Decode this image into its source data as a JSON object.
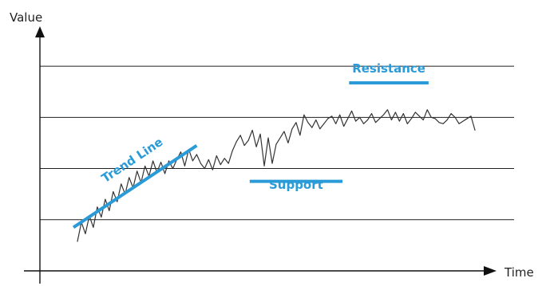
{
  "chart_data": {
    "type": "line",
    "ylabel": "Value",
    "xlabel": "Time",
    "grid": true,
    "series": [
      {
        "color": "#333333",
        "x": [
          0,
          3,
          6,
          9,
          12,
          15,
          18,
          21,
          24,
          27,
          30,
          33,
          36,
          39,
          42,
          45,
          48,
          51,
          54,
          57,
          60,
          63,
          66,
          69,
          72,
          75,
          78,
          81,
          84,
          87,
          90,
          93,
          96,
          99,
          102,
          105,
          108,
          111,
          114,
          117,
          120,
          123,
          126,
          129,
          132,
          135,
          138,
          141,
          144,
          147,
          150,
          153,
          156,
          159,
          162,
          165,
          168,
          171,
          174,
          177,
          180,
          183,
          186,
          189,
          192,
          195,
          198,
          201,
          204,
          207,
          210,
          213,
          216,
          219,
          222,
          225,
          228,
          231,
          234,
          237,
          240,
          243,
          246,
          249,
          252,
          255,
          258,
          261,
          264,
          267,
          270,
          273,
          276,
          279,
          282,
          285,
          288,
          291,
          294,
          297,
          300
        ],
        "y": [
          1.15,
          1.9,
          1.45,
          2.15,
          1.7,
          2.5,
          2.1,
          2.8,
          2.35,
          3.1,
          2.7,
          3.4,
          3.0,
          3.65,
          3.25,
          3.9,
          3.45,
          4.1,
          3.7,
          4.3,
          3.85,
          4.25,
          3.8,
          4.3,
          4.0,
          4.35,
          4.65,
          4.1,
          4.75,
          4.3,
          4.55,
          4.2,
          4.0,
          4.35,
          3.95,
          4.5,
          4.15,
          4.4,
          4.2,
          4.7,
          5.05,
          5.3,
          4.9,
          5.1,
          5.5,
          4.85,
          5.35,
          4.1,
          5.2,
          4.2,
          4.95,
          5.2,
          5.45,
          5.0,
          5.55,
          5.8,
          5.3,
          6.1,
          5.8,
          5.6,
          5.9,
          5.55,
          5.75,
          5.95,
          6.05,
          5.75,
          6.1,
          5.65,
          5.95,
          6.25,
          5.85,
          6.0,
          5.75,
          5.9,
          6.15,
          5.8,
          5.95,
          6.1,
          6.3,
          5.9,
          6.2,
          5.85,
          6.15,
          5.75,
          5.95,
          6.2,
          6.05,
          5.9,
          6.3,
          6.0,
          5.95,
          5.8,
          5.75,
          5.9,
          6.15,
          6.0,
          5.75,
          5.85,
          5.95,
          6.05,
          5.5
        ]
      }
    ],
    "xlim": [
      0,
      300
    ],
    "ylim": [
      0,
      9
    ],
    "gridlines_y": [
      2,
      4,
      6,
      8
    ],
    "annotations": [
      {
        "label": "Trend Line",
        "color": "#2B9BD8",
        "line_x": [
          -3,
          90
        ],
        "line_y": [
          1.7,
          4.9
        ],
        "label_x": 43,
        "label_y": 4.2,
        "rotate_with_line": true,
        "label_side": "above"
      },
      {
        "label": "Support",
        "color": "#2B9BD8",
        "line_x": [
          130,
          200
        ],
        "line_y": [
          3.5,
          3.5
        ],
        "label_x": 165,
        "label_y": 3.2,
        "rotate_with_line": false,
        "label_side": "below"
      },
      {
        "label": "Resistance",
        "color": "#2B9BD8",
        "line_x": [
          205,
          265
        ],
        "line_y": [
          7.35,
          7.35
        ],
        "label_x": 235,
        "label_y": 7.75,
        "rotate_with_line": false,
        "label_side": "above"
      }
    ]
  }
}
